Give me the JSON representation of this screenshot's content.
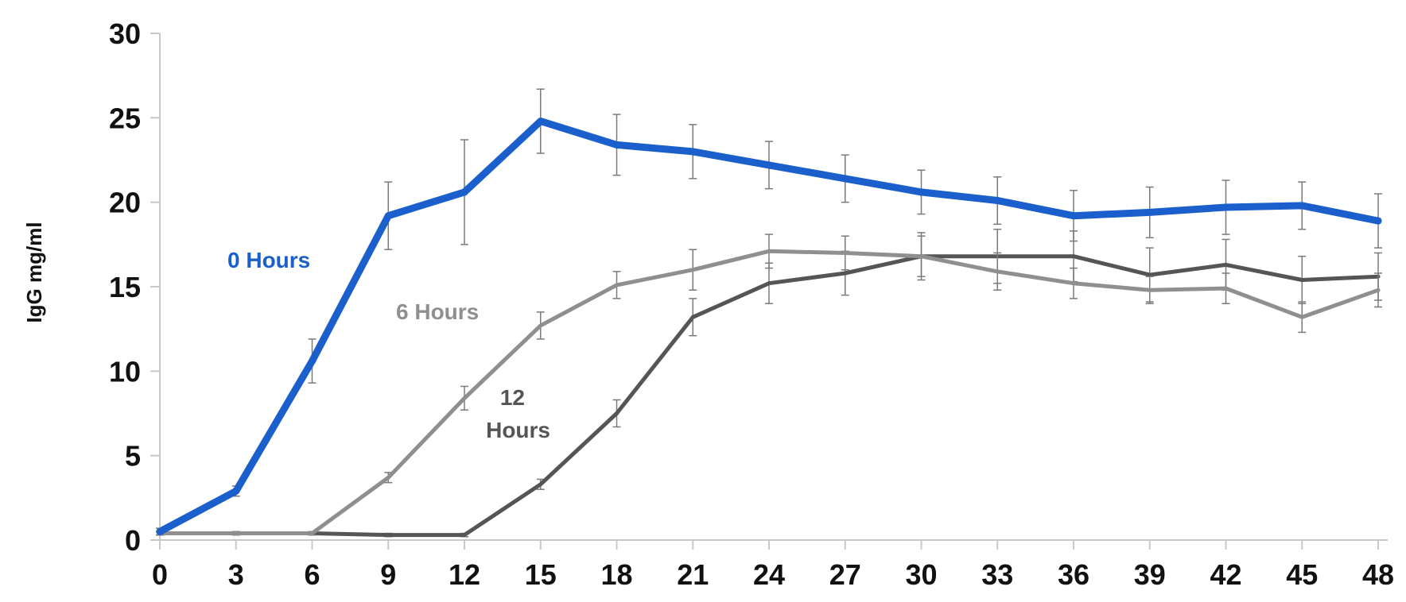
{
  "chart_data": {
    "type": "line",
    "title": "",
    "xlabel": "",
    "ylabel": "IgG mg/ml",
    "x": [
      0,
      3,
      6,
      9,
      12,
      15,
      18,
      21,
      24,
      27,
      30,
      33,
      36,
      39,
      42,
      45,
      48
    ],
    "xticks": [
      "0",
      "3",
      "6",
      "9",
      "12",
      "15",
      "18",
      "21",
      "24",
      "27",
      "30",
      "33",
      "36",
      "39",
      "42",
      "45",
      "48"
    ],
    "yticks": [
      "0",
      "5",
      "10",
      "15",
      "20",
      "25",
      "30"
    ],
    "ylim": [
      0,
      30
    ],
    "grid": false,
    "series": [
      {
        "name": "0 Hours",
        "color": "#1a5fcc",
        "values": [
          0.5,
          2.9,
          10.6,
          19.2,
          20.6,
          24.8,
          23.4,
          23.0,
          22.2,
          21.4,
          20.6,
          20.1,
          19.2,
          19.4,
          19.7,
          19.8,
          18.9
        ],
        "errors": [
          0.2,
          0.3,
          1.3,
          2.0,
          3.1,
          1.9,
          1.8,
          1.6,
          1.4,
          1.4,
          1.3,
          1.4,
          1.5,
          1.5,
          1.6,
          1.4,
          1.6
        ]
      },
      {
        "name": "6 Hours",
        "color": "#8f8f8f",
        "values": [
          0.4,
          0.4,
          0.4,
          3.7,
          8.4,
          12.7,
          15.1,
          16.0,
          17.1,
          17.0,
          16.8,
          15.9,
          15.2,
          14.8,
          14.9,
          13.2,
          14.8
        ],
        "errors": [
          0.1,
          0.1,
          0.1,
          0.3,
          0.7,
          0.8,
          0.8,
          1.2,
          1.0,
          1.0,
          1.2,
          1.1,
          0.9,
          0.8,
          0.9,
          0.9,
          1.0
        ]
      },
      {
        "name": "12 Hours",
        "color": "#555555",
        "values": [
          0.4,
          0.4,
          0.4,
          0.3,
          0.3,
          3.3,
          7.5,
          13.2,
          15.2,
          15.8,
          16.8,
          16.8,
          16.8,
          15.7,
          16.3,
          15.4,
          15.6
        ],
        "errors": [
          0.1,
          0.1,
          0.1,
          0.1,
          0.1,
          0.3,
          0.8,
          1.1,
          1.2,
          1.3,
          1.4,
          1.6,
          1.5,
          1.6,
          1.5,
          1.4,
          1.4
        ]
      }
    ],
    "labels": {
      "zero": "0 Hours",
      "six": "6 Hours",
      "twelve_line1": "12",
      "twelve_line2": "Hours"
    }
  }
}
